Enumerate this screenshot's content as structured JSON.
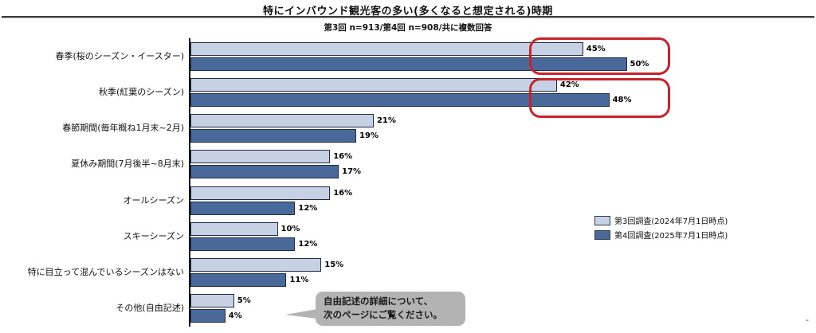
{
  "header": {
    "title": "特にインバウンド観光客の多い(多くなると想定される)時期",
    "subtitle": "第3回 n=913/第4回 n=908/共に複数回答"
  },
  "chart_data": {
    "type": "bar",
    "orientation": "horizontal",
    "title": "特にインバウンド観光客の多い(多くなると想定される)時期",
    "subtitle": "第3回 n=913/第4回 n=908/共に複数回答",
    "categories": [
      "春季(桜のシーズン・イースター)",
      "秋季(紅葉のシーズン)",
      "春節期間(毎年概ね1月末~2月)",
      "夏休み期間(7月後半~8月末)",
      "オールシーズン",
      "スキーシーズン",
      "特に目立って混んでいるシーズンはない",
      "その他(自由記述)"
    ],
    "series": [
      {
        "name": "第3回調査(2024年7月1日時点)",
        "color": "#c7d1e5",
        "values": [
          45,
          42,
          21,
          16,
          16,
          10,
          15,
          5
        ]
      },
      {
        "name": "第4回調査(2025年7月1日時点)",
        "color": "#4a699b",
        "values": [
          50,
          48,
          19,
          17,
          12,
          12,
          11,
          4
        ]
      }
    ],
    "value_suffix": "%",
    "xlim": [
      0,
      60
    ],
    "grid": false,
    "legend_position": "right",
    "highlighted_categories": [
      "春季(桜のシーズン・イースター)",
      "秋季(紅葉のシーズン)"
    ],
    "highlight_color": "#c8232c"
  },
  "callout": {
    "line1": "自由記述の詳細について、",
    "line2": "次のページにご覧ください。"
  },
  "footer_mark": "-",
  "colors": {
    "series3_light_blue": "#c7d1e5",
    "series4_dark_blue": "#4a699b",
    "bar_border": "#222b3a",
    "highlight_red": "#c8232c",
    "callout_gray": "#b3b3b3"
  }
}
